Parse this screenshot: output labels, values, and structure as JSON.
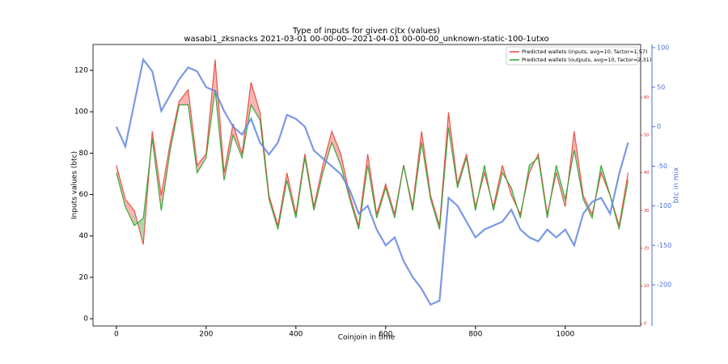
{
  "chart_data": {
    "type": "line",
    "title": "Type of inputs for given cjtx (values)",
    "subtitle": "wasabi1_zksnacks 2021-03-01 00-00-00--2021-04-01 00-00-00_unknown-static-100-1utxo",
    "xlabel": "Coinjoin in time",
    "ylabel": "Inputs values (btc)",
    "y2label": "btc in mix",
    "x": [
      0,
      20,
      40,
      60,
      80,
      100,
      120,
      140,
      160,
      180,
      200,
      220,
      240,
      260,
      280,
      300,
      320,
      340,
      360,
      380,
      400,
      420,
      440,
      460,
      480,
      500,
      520,
      540,
      560,
      580,
      600,
      620,
      640,
      660,
      680,
      700,
      720,
      740,
      760,
      780,
      800,
      820,
      840,
      860,
      880,
      900,
      920,
      940,
      960,
      980,
      1000,
      1020,
      1040,
      1060,
      1080,
      1100,
      1120,
      1140
    ],
    "xlim": [
      -52,
      1168
    ],
    "xticks": [
      0,
      200,
      400,
      600,
      800,
      1000
    ],
    "ylim": [
      -3.5,
      132.5
    ],
    "yticks": [
      0,
      20,
      40,
      60,
      80,
      100,
      120
    ],
    "y2lim": [
      -252,
      104
    ],
    "y2ticks": [
      -200,
      -150,
      -100,
      -50,
      0,
      50,
      100
    ],
    "y3lim": [
      -0.6,
      74
    ],
    "y3ticks": [
      0,
      10,
      20,
      30,
      40,
      50,
      60
    ],
    "y3color": "#d62728",
    "legend": "upper right",
    "series": [
      {
        "name": "Predicted wallets (inputs, avg=10, factor=1.57)",
        "color": "#e8453c",
        "axis": "y3",
        "values": [
          42,
          33,
          30,
          21,
          51,
          34,
          48,
          59,
          62,
          42,
          45,
          70,
          40,
          53,
          45,
          64,
          56,
          34,
          26,
          40,
          29,
          45,
          31,
          42,
          51,
          45,
          34,
          26,
          45,
          29,
          37,
          29,
          42,
          31,
          51,
          34,
          26,
          56,
          37,
          45,
          31,
          40,
          31,
          42,
          34,
          29,
          40,
          45,
          29,
          40,
          31,
          51,
          34,
          29,
          40,
          34,
          26,
          40
        ]
      },
      {
        "name": "Predicted wallets (outputs, avg=10, factor=2.31)",
        "color": "#2ca02c",
        "axis": "y3",
        "values": [
          40,
          31,
          26,
          28,
          49,
          30,
          46,
          58,
          58,
          40,
          44,
          62,
          38,
          50,
          44,
          58,
          54,
          33,
          25,
          38,
          28,
          44,
          30,
          40,
          48,
          42,
          33,
          25,
          42,
          28,
          36,
          28,
          42,
          30,
          48,
          33,
          25,
          52,
          36,
          44,
          30,
          42,
          30,
          40,
          36,
          28,
          42,
          44,
          28,
          42,
          33,
          46,
          33,
          28,
          42,
          34,
          25,
          38
        ]
      },
      {
        "name": "btc in mix",
        "color": "#6b8de3",
        "axis": "y2",
        "values": [
          0,
          -25,
          30,
          85,
          70,
          20,
          40,
          60,
          75,
          70,
          50,
          45,
          20,
          0,
          -10,
          10,
          -20,
          -35,
          -20,
          15,
          10,
          0,
          -30,
          -40,
          -50,
          -60,
          -80,
          -110,
          -100,
          -130,
          -150,
          -140,
          -170,
          -190,
          -205,
          -225,
          -220,
          -90,
          -100,
          -120,
          -140,
          -130,
          -125,
          -120,
          -105,
          -130,
          -140,
          -145,
          -130,
          -140,
          -130,
          -150,
          -110,
          -95,
          -90,
          -110,
          -60,
          -20
        ]
      }
    ]
  }
}
